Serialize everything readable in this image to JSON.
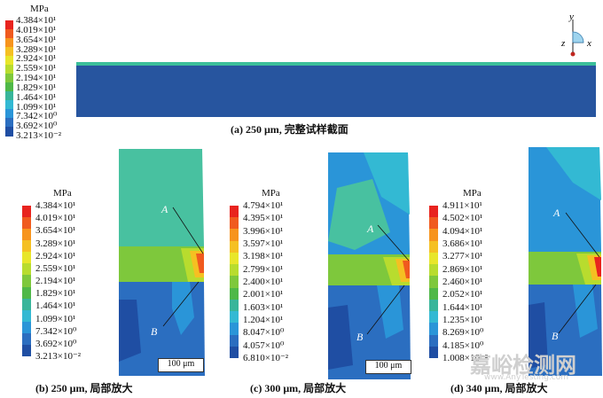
{
  "panel_a": {
    "unit": "MPa",
    "ticks": [
      "4.384×10¹",
      "4.019×10¹",
      "3.654×10¹",
      "3.289×10¹",
      "2.924×10¹",
      "2.559×10¹",
      "2.194×10¹",
      "1.829×10¹",
      "1.464×10¹",
      "1.099×10¹",
      "7.342×10⁰",
      "3.692×10⁰",
      "3.213×10⁻²"
    ],
    "caption": "(a) 250 μm, 完整试样截面"
  },
  "panel_b": {
    "unit": "MPa",
    "ticks": [
      "4.384×10¹",
      "4.019×10¹",
      "3.654×10¹",
      "3.289×10¹",
      "2.924×10¹",
      "2.559×10¹",
      "2.194×10¹",
      "1.829×10¹",
      "1.464×10¹",
      "1.099×10¹",
      "7.342×10⁰",
      "3.692×10⁰",
      "3.213×10⁻²"
    ],
    "caption": "(b) 250 μm, 局部放大",
    "scale": "100 μm",
    "label_a": "A",
    "label_b": "B"
  },
  "panel_c": {
    "unit": "MPa",
    "ticks": [
      "4.794×10¹",
      "4.395×10¹",
      "3.996×10¹",
      "3.597×10¹",
      "3.198×10¹",
      "2.799×10¹",
      "2.400×10¹",
      "2.001×10¹",
      "1.603×10¹",
      "1.204×10¹",
      "8.047×10⁰",
      "4.057×10⁰",
      "6.810×10⁻²"
    ],
    "caption": "(c) 300 μm, 局部放大",
    "scale": "100 μm",
    "label_a": "A",
    "label_b": "B"
  },
  "panel_d": {
    "unit": "MPa",
    "ticks": [
      "4.911×10¹",
      "4.502×10¹",
      "4.094×10¹",
      "3.686×10¹",
      "3.277×10¹",
      "2.869×10¹",
      "2.460×10¹",
      "2.052×10¹",
      "1.644×10¹",
      "1.235×10¹",
      "8.269×10⁰",
      "4.185×10⁰",
      "1.008×10⁻²"
    ],
    "caption": "(d) 340 μm, 局部放大",
    "scale": "100 μm",
    "label_a": "A",
    "label_b": "B"
  },
  "axes": {
    "y": "y",
    "z": "z",
    "x": "x"
  },
  "watermark": {
    "main": "嘉峪检测网",
    "sub": "www.AnyTesting.com"
  },
  "colormap": [
    "#e8231e",
    "#f05a1e",
    "#f7941d",
    "#f5c022",
    "#e8e62a",
    "#b8dc2e",
    "#7ec83c",
    "#4fb848",
    "#38b59a",
    "#33b9d3",
    "#2a95d8",
    "#2b6ec0",
    "#1f4ea3"
  ]
}
